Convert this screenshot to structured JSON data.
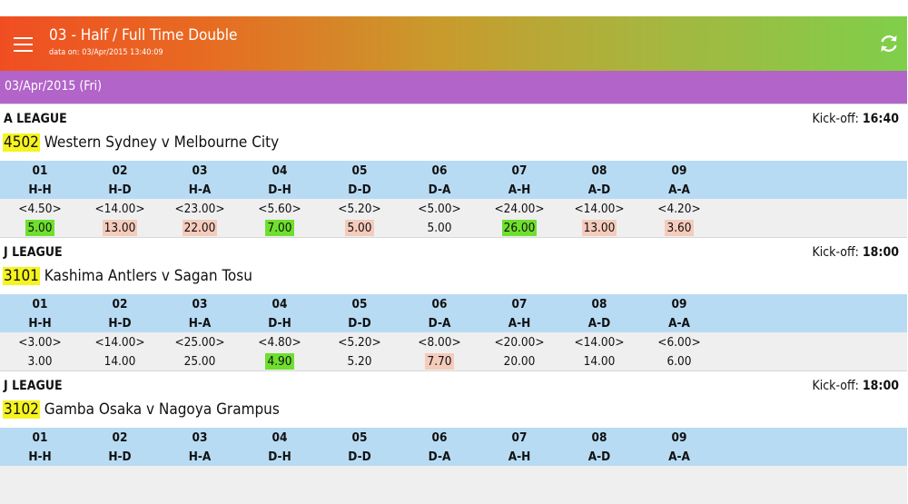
{
  "app": {
    "title": "03 - Half / Full Time Double",
    "subtitle": "data on: 03/Apr/2015 13:40:09",
    "menu_icon": "hamburger-menu-icon",
    "refresh_icon": "refresh-icon"
  },
  "date_header": "03/Apr/2015 (Fri)",
  "kickoff_label": "Kick-off:",
  "matches": [
    {
      "league": "A LEAGUE",
      "kickoff_time": "16:40",
      "event_no": "4502",
      "teams": "Western Sydney v Melbourne City",
      "odds": [
        {
          "num": "01",
          "code": "H-H",
          "prev": "<4.50>",
          "current": "5.00",
          "highlight": "green"
        },
        {
          "num": "02",
          "code": "H-D",
          "prev": "<14.00>",
          "current": "13.00",
          "highlight": "pink"
        },
        {
          "num": "03",
          "code": "H-A",
          "prev": "<23.00>",
          "current": "22.00",
          "highlight": "pink"
        },
        {
          "num": "04",
          "code": "D-H",
          "prev": "<5.60>",
          "current": "7.00",
          "highlight": "green"
        },
        {
          "num": "05",
          "code": "D-D",
          "prev": "<5.20>",
          "current": "5.00",
          "highlight": "pink"
        },
        {
          "num": "06",
          "code": "D-A",
          "prev": "<5.00>",
          "current": "5.00",
          "highlight": "none"
        },
        {
          "num": "07",
          "code": "A-H",
          "prev": "<24.00>",
          "current": "26.00",
          "highlight": "green"
        },
        {
          "num": "08",
          "code": "A-D",
          "prev": "<14.00>",
          "current": "13.00",
          "highlight": "pink"
        },
        {
          "num": "09",
          "code": "A-A",
          "prev": "<4.20>",
          "current": "3.60",
          "highlight": "pink"
        }
      ]
    },
    {
      "league": "J LEAGUE",
      "kickoff_time": "18:00",
      "event_no": "3101",
      "teams": "Kashima Antlers v Sagan Tosu",
      "odds": [
        {
          "num": "01",
          "code": "H-H",
          "prev": "<3.00>",
          "current": "3.00",
          "highlight": "none"
        },
        {
          "num": "02",
          "code": "H-D",
          "prev": "<14.00>",
          "current": "14.00",
          "highlight": "none"
        },
        {
          "num": "03",
          "code": "H-A",
          "prev": "<25.00>",
          "current": "25.00",
          "highlight": "none"
        },
        {
          "num": "04",
          "code": "D-H",
          "prev": "<4.80>",
          "current": "4.90",
          "highlight": "green"
        },
        {
          "num": "05",
          "code": "D-D",
          "prev": "<5.20>",
          "current": "5.20",
          "highlight": "none"
        },
        {
          "num": "06",
          "code": "D-A",
          "prev": "<8.00>",
          "current": "7.70",
          "highlight": "pink"
        },
        {
          "num": "07",
          "code": "A-H",
          "prev": "<20.00>",
          "current": "20.00",
          "highlight": "none"
        },
        {
          "num": "08",
          "code": "A-D",
          "prev": "<14.00>",
          "current": "14.00",
          "highlight": "none"
        },
        {
          "num": "09",
          "code": "A-A",
          "prev": "<6.00>",
          "current": "6.00",
          "highlight": "none"
        }
      ]
    },
    {
      "league": "J LEAGUE",
      "kickoff_time": "18:00",
      "event_no": "3102",
      "teams": "Gamba Osaka v Nagoya Grampus",
      "odds": [
        {
          "num": "01",
          "code": "H-H",
          "prev": "",
          "current": "",
          "highlight": "none"
        },
        {
          "num": "02",
          "code": "H-D",
          "prev": "",
          "current": "",
          "highlight": "none"
        },
        {
          "num": "03",
          "code": "H-A",
          "prev": "",
          "current": "",
          "highlight": "none"
        },
        {
          "num": "04",
          "code": "D-H",
          "prev": "",
          "current": "",
          "highlight": "none"
        },
        {
          "num": "05",
          "code": "D-D",
          "prev": "",
          "current": "",
          "highlight": "none"
        },
        {
          "num": "06",
          "code": "D-A",
          "prev": "",
          "current": "",
          "highlight": "none"
        },
        {
          "num": "07",
          "code": "A-H",
          "prev": "",
          "current": "",
          "highlight": "none"
        },
        {
          "num": "08",
          "code": "A-D",
          "prev": "",
          "current": "",
          "highlight": "none"
        },
        {
          "num": "09",
          "code": "A-A",
          "prev": "",
          "current": "",
          "highlight": "none"
        }
      ]
    }
  ],
  "colors": {
    "appbar_start": "#f04e22",
    "appbar_end": "#7fcf4a",
    "date_bar": "#b264c9",
    "odds_header": "#b8dbf4",
    "odds_body": "#efefef",
    "odds_up": "#6fdf2e",
    "odds_down": "#f5cbbc",
    "event_no_highlight": "#f6f41e"
  }
}
